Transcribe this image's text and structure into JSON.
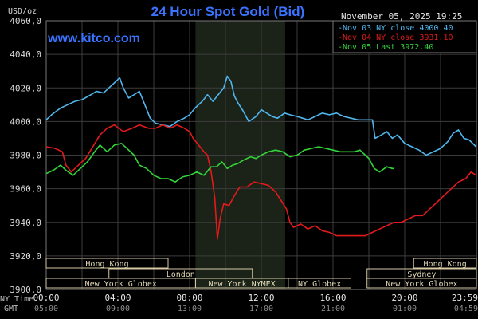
{
  "chart_data": {
    "type": "line",
    "title": "24 Hour Spot Gold (Bid)",
    "timestamp": "November 05, 2025 19:25",
    "watermark": "www.kitco.com",
    "ylabel": "USD/oz",
    "ylim": [
      3900,
      4060
    ],
    "y_ticks": [
      "4060,0",
      "4040,0",
      "4020,0",
      "4000,0",
      "3980,0",
      "3960,0",
      "3940,0",
      "3920,0",
      "3900,0"
    ],
    "x_tick_label_ny": [
      "00:00",
      "04:00",
      "08:00",
      "12:00",
      "16:00",
      "20:00",
      "23:59"
    ],
    "x_tick_label_gmt": [
      "05:00",
      "09:00",
      "13:00",
      "17:00",
      "21:00",
      "01:00",
      "04:59"
    ],
    "x_row_label_ny": "NY Time",
    "x_row_label_gmt": "GMT",
    "grid": true,
    "legend_placement": "top-right",
    "shaded_session": {
      "start_hour": 8.33,
      "end_hour": 13.33,
      "color": "#1b2218"
    },
    "series": [
      {
        "name": "Nov 03 NY close 4000.40",
        "color": "#4fb6ee",
        "points": [
          [
            0,
            4001
          ],
          [
            0.3,
            4004
          ],
          [
            0.8,
            4008
          ],
          [
            1.2,
            4010
          ],
          [
            1.6,
            4012
          ],
          [
            2.0,
            4013
          ],
          [
            2.5,
            4016
          ],
          [
            2.8,
            4018
          ],
          [
            3.2,
            4017
          ],
          [
            3.6,
            4021
          ],
          [
            3.9,
            4024
          ],
          [
            4.1,
            4026
          ],
          [
            4.3,
            4020
          ],
          [
            4.6,
            4014
          ],
          [
            4.9,
            4016
          ],
          [
            5.2,
            4018
          ],
          [
            5.5,
            4010
          ],
          [
            5.8,
            4002
          ],
          [
            6.1,
            3999
          ],
          [
            6.5,
            3998
          ],
          [
            6.9,
            3997
          ],
          [
            7.3,
            4000
          ],
          [
            7.7,
            4002
          ],
          [
            8.0,
            4004
          ],
          [
            8.3,
            4008
          ],
          [
            8.7,
            4012
          ],
          [
            9.0,
            4016
          ],
          [
            9.3,
            4012
          ],
          [
            9.6,
            4016
          ],
          [
            9.9,
            4020
          ],
          [
            10.1,
            4027
          ],
          [
            10.3,
            4024
          ],
          [
            10.5,
            4015
          ],
          [
            10.7,
            4011
          ],
          [
            11.0,
            4006
          ],
          [
            11.3,
            4000
          ],
          [
            11.7,
            4003
          ],
          [
            12.0,
            4007
          ],
          [
            12.3,
            4005
          ],
          [
            12.6,
            4003
          ],
          [
            12.9,
            4002
          ],
          [
            13.3,
            4005
          ],
          [
            13.6,
            4004
          ],
          [
            14.0,
            4003
          ],
          [
            14.3,
            4002
          ],
          [
            14.6,
            4001
          ],
          [
            15.0,
            4003
          ],
          [
            15.4,
            4005
          ],
          [
            15.8,
            4004
          ],
          [
            16.2,
            4005
          ],
          [
            16.6,
            4003
          ],
          [
            17.0,
            4002
          ],
          [
            17.4,
            4001
          ],
          [
            17.8,
            4001
          ],
          [
            18.2,
            4001
          ],
          [
            18.35,
            3990
          ],
          [
            18.7,
            3992
          ],
          [
            19.0,
            3994
          ],
          [
            19.3,
            3990
          ],
          [
            19.6,
            3992
          ],
          [
            20.0,
            3987
          ],
          [
            20.4,
            3985
          ],
          [
            20.8,
            3983
          ],
          [
            21.2,
            3980
          ],
          [
            21.6,
            3982
          ],
          [
            22.0,
            3984
          ],
          [
            22.4,
            3988
          ],
          [
            22.7,
            3993
          ],
          [
            23.0,
            3995
          ],
          [
            23.3,
            3990
          ],
          [
            23.6,
            3989
          ],
          [
            23.98,
            3985
          ]
        ]
      },
      {
        "name": "Nov 04 NY close 3931.10",
        "color": "#e21a1a",
        "points": [
          [
            0,
            3985
          ],
          [
            0.5,
            3984
          ],
          [
            0.9,
            3982
          ],
          [
            1.1,
            3974
          ],
          [
            1.4,
            3970
          ],
          [
            1.8,
            3974
          ],
          [
            2.2,
            3978
          ],
          [
            2.6,
            3985
          ],
          [
            3.0,
            3992
          ],
          [
            3.4,
            3996
          ],
          [
            3.8,
            3998
          ],
          [
            4.3,
            3994
          ],
          [
            4.8,
            3996
          ],
          [
            5.2,
            3998
          ],
          [
            5.7,
            3996
          ],
          [
            6.1,
            3996
          ],
          [
            6.5,
            3998
          ],
          [
            6.9,
            3996
          ],
          [
            7.3,
            3998
          ],
          [
            7.7,
            3996
          ],
          [
            8.0,
            3994
          ],
          [
            8.2,
            3990
          ],
          [
            8.5,
            3986
          ],
          [
            8.8,
            3982
          ],
          [
            9.0,
            3980
          ],
          [
            9.2,
            3970
          ],
          [
            9.4,
            3955
          ],
          [
            9.55,
            3930
          ],
          [
            9.7,
            3942
          ],
          [
            9.9,
            3951
          ],
          [
            10.2,
            3950
          ],
          [
            10.5,
            3956
          ],
          [
            10.8,
            3961
          ],
          [
            11.2,
            3961
          ],
          [
            11.6,
            3964
          ],
          [
            12.0,
            3963
          ],
          [
            12.4,
            3962
          ],
          [
            12.8,
            3958
          ],
          [
            13.1,
            3953
          ],
          [
            13.4,
            3948
          ],
          [
            13.6,
            3940
          ],
          [
            13.8,
            3937
          ],
          [
            14.2,
            3939
          ],
          [
            14.6,
            3936
          ],
          [
            15.0,
            3938
          ],
          [
            15.4,
            3935
          ],
          [
            15.8,
            3934
          ],
          [
            16.2,
            3932
          ],
          [
            16.6,
            3932
          ],
          [
            17.0,
            3932
          ],
          [
            17.4,
            3932
          ],
          [
            17.8,
            3932
          ],
          [
            18.2,
            3934
          ],
          [
            18.6,
            3936
          ],
          [
            19.0,
            3938
          ],
          [
            19.4,
            3940
          ],
          [
            19.8,
            3940
          ],
          [
            20.2,
            3942
          ],
          [
            20.6,
            3944
          ],
          [
            21.0,
            3944
          ],
          [
            21.4,
            3948
          ],
          [
            21.8,
            3952
          ],
          [
            22.2,
            3956
          ],
          [
            22.6,
            3960
          ],
          [
            23.0,
            3964
          ],
          [
            23.4,
            3966
          ],
          [
            23.7,
            3970
          ],
          [
            23.98,
            3968
          ]
        ]
      },
      {
        "name": "Nov 05 Last 3972.40",
        "color": "#33d33a",
        "points": [
          [
            0,
            3969
          ],
          [
            0.4,
            3971
          ],
          [
            0.8,
            3974
          ],
          [
            1.1,
            3971
          ],
          [
            1.5,
            3968
          ],
          [
            1.9,
            3972
          ],
          [
            2.3,
            3976
          ],
          [
            2.7,
            3982
          ],
          [
            3.0,
            3986
          ],
          [
            3.4,
            3982
          ],
          [
            3.8,
            3986
          ],
          [
            4.2,
            3987
          ],
          [
            4.5,
            3984
          ],
          [
            4.9,
            3980
          ],
          [
            5.2,
            3974
          ],
          [
            5.6,
            3972
          ],
          [
            6.0,
            3968
          ],
          [
            6.4,
            3966
          ],
          [
            6.8,
            3966
          ],
          [
            7.2,
            3964
          ],
          [
            7.6,
            3967
          ],
          [
            8.0,
            3968
          ],
          [
            8.4,
            3970
          ],
          [
            8.8,
            3968
          ],
          [
            9.2,
            3973
          ],
          [
            9.5,
            3973
          ],
          [
            9.8,
            3976
          ],
          [
            10.1,
            3972
          ],
          [
            10.4,
            3974
          ],
          [
            10.7,
            3975
          ],
          [
            11.0,
            3977
          ],
          [
            11.4,
            3979
          ],
          [
            11.7,
            3978
          ],
          [
            12.0,
            3980
          ],
          [
            12.4,
            3982
          ],
          [
            12.8,
            3983
          ],
          [
            13.2,
            3982
          ],
          [
            13.6,
            3979
          ],
          [
            14.0,
            3980
          ],
          [
            14.4,
            3983
          ],
          [
            14.8,
            3984
          ],
          [
            15.2,
            3985
          ],
          [
            15.6,
            3984
          ],
          [
            16.0,
            3983
          ],
          [
            16.4,
            3982
          ],
          [
            16.8,
            3982
          ],
          [
            17.2,
            3982
          ],
          [
            17.5,
            3983
          ],
          [
            17.8,
            3980
          ],
          [
            18.0,
            3978
          ],
          [
            18.3,
            3972
          ],
          [
            18.6,
            3970
          ],
          [
            19.0,
            3973
          ],
          [
            19.3,
            3972
          ],
          [
            19.42,
            3972
          ]
        ]
      }
    ],
    "sessions": [
      {
        "label": "Hong Kong",
        "start_hour": 0.0,
        "end_hour": 6.8,
        "row": 0
      },
      {
        "label": "London",
        "start_hour": 3.5,
        "end_hour": 11.5,
        "row": 1
      },
      {
        "label": "New York Globex",
        "start_hour": 0.0,
        "end_hour": 8.33,
        "row": 2
      },
      {
        "label": "New York NYMEX",
        "start_hour": 8.33,
        "end_hour": 13.5,
        "row": 2
      },
      {
        "label": "NY Globex",
        "start_hour": 13.5,
        "end_hour": 17.0,
        "row": 2
      },
      {
        "label": "Hong Kong",
        "start_hour": 20.5,
        "end_hour": 24.0,
        "row": 0
      },
      {
        "label": "Sydney",
        "start_hour": 17.9,
        "end_hour": 24.0,
        "row": 1
      },
      {
        "label": "New York Globex",
        "start_hour": 17.9,
        "end_hour": 24.0,
        "row": 2
      }
    ]
  }
}
